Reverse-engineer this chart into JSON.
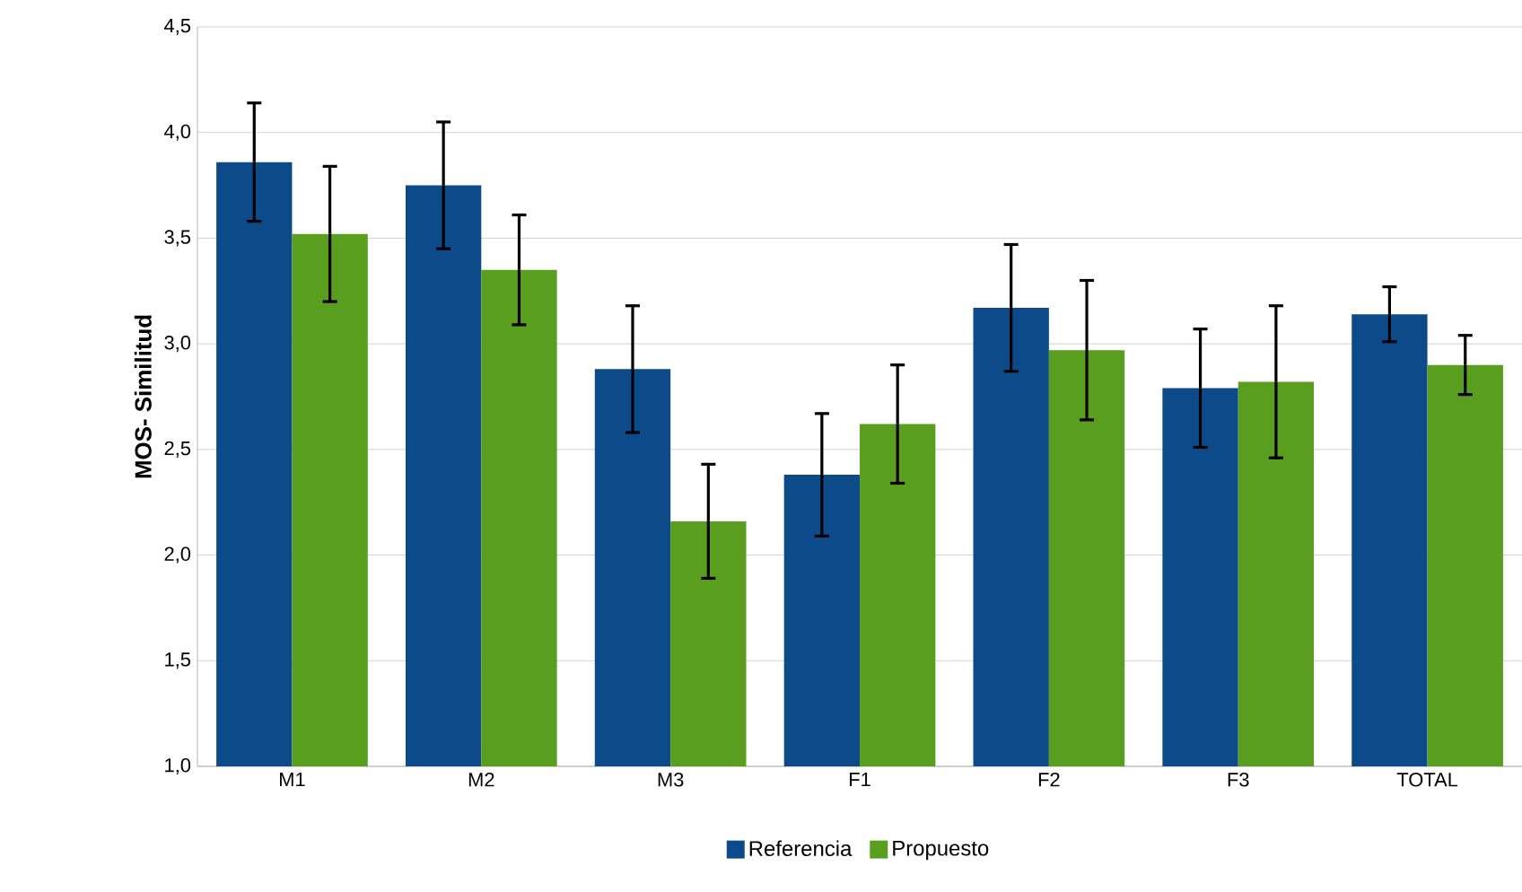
{
  "chart_data": {
    "type": "bar",
    "ylabel": "MOS- Similitud",
    "categories": [
      "M1",
      "M2",
      "M3",
      "F1",
      "F2",
      "F3",
      "TOTAL"
    ],
    "series": [
      {
        "name": "Referencia",
        "color": "#0d4a8a",
        "values": [
          3.86,
          3.75,
          2.88,
          2.38,
          3.17,
          2.79,
          3.14
        ],
        "errors": [
          0.28,
          0.3,
          0.3,
          0.29,
          0.3,
          0.28,
          0.13
        ]
      },
      {
        "name": "Propuesto",
        "color": "#5a9e1f",
        "values": [
          3.52,
          3.35,
          2.16,
          2.62,
          2.97,
          2.82,
          2.9
        ],
        "errors": [
          0.32,
          0.26,
          0.27,
          0.28,
          0.33,
          0.36,
          0.14
        ]
      }
    ],
    "ylim": [
      1.0,
      4.5
    ],
    "yticks": [
      {
        "value": 1.0,
        "label": "1,0"
      },
      {
        "value": 1.5,
        "label": "1,5"
      },
      {
        "value": 2.0,
        "label": "2,0"
      },
      {
        "value": 2.5,
        "label": "2,5"
      },
      {
        "value": 3.0,
        "label": "3,0"
      },
      {
        "value": 3.5,
        "label": "3,5"
      },
      {
        "value": 4.0,
        "label": "4,0"
      },
      {
        "value": 4.5,
        "label": "4,5"
      }
    ],
    "grid": "y",
    "legend": "bottom"
  }
}
